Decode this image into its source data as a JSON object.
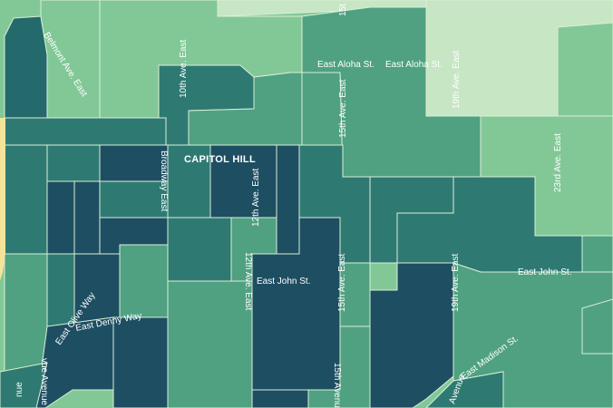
{
  "map": {
    "neighborhood_label": "CAPITOL HILL",
    "colors": {
      "lightest": "#c6e6c4",
      "light": "#82c897",
      "medium": "#4fa181",
      "medium_dark": "#2e7a73",
      "dark": "#246a6c",
      "darkest": "#1e4e62",
      "water_edge": "#f4e49a"
    },
    "streets": {
      "belmont": "Belmont Ave. East",
      "tenth": "10th Ave. East",
      "aloha_1": "East Aloha St.",
      "aloha_2": "East Aloha St.",
      "fifteenth_top": "15th Ave. East",
      "fifteenth_cut": "15t",
      "nineteenth_top": "19th Ave. East",
      "twentythird": "23rd Ave. East",
      "broadway": "Broadway East",
      "twelfth_upper": "12th Ave. East",
      "twelfth_lower": "12th Ave. East",
      "john_1": "East John St.",
      "john_2": "East John St.",
      "fifteenth_mid": "15th Ave. East",
      "nineteenth_mid": "19th Ave. East",
      "olive": "East Olive Way",
      "denny": "East Denny Way",
      "madison": "East Madison St.",
      "fifteenth_bottom": "15th Avenu",
      "avenue_bottom": "Avenue",
      "venue_left": "vue Avenue",
      "nue_left": "nue"
    }
  }
}
